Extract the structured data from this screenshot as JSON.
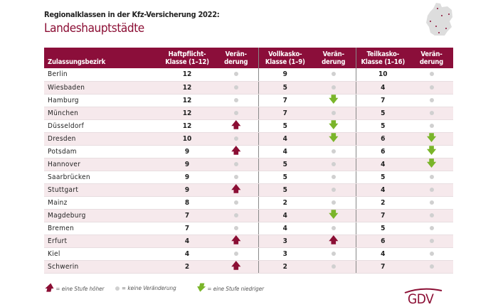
{
  "header": {
    "subtitle": "Regionalklassen in der Kfz-Versicherung 2022:",
    "title": "Landeshauptstädte"
  },
  "columns": {
    "name": "Zulassungsbezirk",
    "haft": "Haftpflicht-Klasse (1–12)",
    "haft_change": "Verän-derung",
    "voll": "Vollkasko-Klasse (1–9)",
    "voll_change": "Verän-derung",
    "teil": "Teilkasko-Klasse (1–16)",
    "teil_change": "Verän-derung"
  },
  "rows": [
    {
      "name": "Berlin",
      "haft": "12",
      "haft_change": "none",
      "voll": "9",
      "voll_change": "none",
      "teil": "10",
      "teil_change": "none"
    },
    {
      "name": "Wiesbaden",
      "haft": "12",
      "haft_change": "none",
      "voll": "5",
      "voll_change": "none",
      "teil": "4",
      "teil_change": "none"
    },
    {
      "name": "Hamburg",
      "haft": "12",
      "haft_change": "none",
      "voll": "7",
      "voll_change": "down",
      "teil": "7",
      "teil_change": "none"
    },
    {
      "name": "München",
      "haft": "12",
      "haft_change": "none",
      "voll": "7",
      "voll_change": "none",
      "teil": "5",
      "teil_change": "none"
    },
    {
      "name": "Düsseldorf",
      "haft": "12",
      "haft_change": "up",
      "voll": "5",
      "voll_change": "down",
      "teil": "5",
      "teil_change": "none"
    },
    {
      "name": "Dresden",
      "haft": "10",
      "haft_change": "none",
      "voll": "4",
      "voll_change": "down",
      "teil": "6",
      "teil_change": "down"
    },
    {
      "name": "Potsdam",
      "haft": "9",
      "haft_change": "up",
      "voll": "4",
      "voll_change": "none",
      "teil": "6",
      "teil_change": "down"
    },
    {
      "name": "Hannover",
      "haft": "9",
      "haft_change": "none",
      "voll": "5",
      "voll_change": "none",
      "teil": "4",
      "teil_change": "down"
    },
    {
      "name": "Saarbrücken",
      "haft": "9",
      "haft_change": "none",
      "voll": "5",
      "voll_change": "none",
      "teil": "5",
      "teil_change": "none"
    },
    {
      "name": "Stuttgart",
      "haft": "9",
      "haft_change": "up",
      "voll": "5",
      "voll_change": "none",
      "teil": "4",
      "teil_change": "none"
    },
    {
      "name": "Mainz",
      "haft": "8",
      "haft_change": "none",
      "voll": "2",
      "voll_change": "none",
      "teil": "2",
      "teil_change": "none"
    },
    {
      "name": "Magdeburg",
      "haft": "7",
      "haft_change": "none",
      "voll": "4",
      "voll_change": "down",
      "teil": "7",
      "teil_change": "none"
    },
    {
      "name": "Bremen",
      "haft": "7",
      "haft_change": "none",
      "voll": "4",
      "voll_change": "none",
      "teil": "5",
      "teil_change": "none"
    },
    {
      "name": "Erfurt",
      "haft": "4",
      "haft_change": "up",
      "voll": "3",
      "voll_change": "up",
      "teil": "6",
      "teil_change": "none"
    },
    {
      "name": "Kiel",
      "haft": "4",
      "haft_change": "none",
      "voll": "3",
      "voll_change": "none",
      "teil": "4",
      "teil_change": "none"
    },
    {
      "name": "Schwerin",
      "haft": "2",
      "haft_change": "up",
      "voll": "2",
      "voll_change": "none",
      "teil": "7",
      "teil_change": "none"
    }
  ],
  "legend": {
    "up": "= eine Stufe höher",
    "none": "= keine Veränderung",
    "down": "= eine Stufe niedriger"
  },
  "logo": {
    "text": "GDV"
  },
  "colors": {
    "brand": "#8b0e3a",
    "up": "#8b0e34",
    "down": "#7ab52a",
    "none": "#d0d0d0"
  }
}
